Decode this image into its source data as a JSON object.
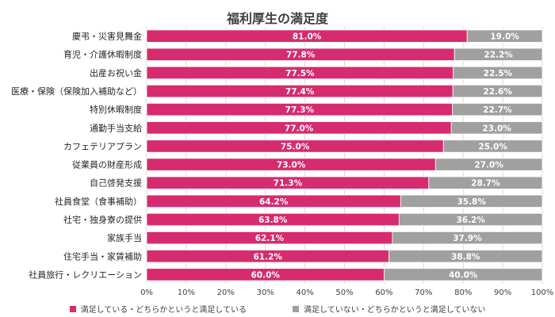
{
  "chart_data": {
    "type": "bar",
    "orientation": "horizontal",
    "stacked": "percent",
    "title": "福利厚生の満足度",
    "categories": [
      "慶弔・災害見舞金",
      "育児・介護休暇制度",
      "出産お祝い金",
      "医療・保険（保険加入補助など）",
      "特別休暇制度",
      "通勤手当支給",
      "カフェテリアプラン",
      "従業員の財産形成",
      "自己啓発支援",
      "社員食堂（食事補助）",
      "社宅・独身寮の提供",
      "家族手当",
      "住宅手当・家賃補助",
      "社員旅行・レクリエーション"
    ],
    "series": [
      {
        "name": "満足している・どちらかというと満足している",
        "color": "#d62b6f",
        "values": [
          81.0,
          77.8,
          77.5,
          77.4,
          77.3,
          77.0,
          75.0,
          73.0,
          71.3,
          64.2,
          63.8,
          62.1,
          61.2,
          60.0
        ],
        "labels": [
          "81.0%",
          "77.8%",
          "77.5%",
          "77.4%",
          "77.3%",
          "77.0%",
          "75.0%",
          "73.0%",
          "71.3%",
          "64.2%",
          "63.8%",
          "62.1%",
          "61.2%",
          "60.0%"
        ]
      },
      {
        "name": "満足していない・どちらかというと満足していない",
        "color": "#a0a0a0",
        "values": [
          19.0,
          22.2,
          22.5,
          22.6,
          22.7,
          23.0,
          25.0,
          27.0,
          28.7,
          35.8,
          36.2,
          37.9,
          38.8,
          40.0
        ],
        "labels": [
          "19.0%",
          "22.2%",
          "22.5%",
          "22.6%",
          "22.7%",
          "23.0%",
          "25.0%",
          "27.0%",
          "28.7%",
          "35.8%",
          "36.2%",
          "37.9%",
          "38.8%",
          "40.0%"
        ]
      }
    ],
    "xlim": [
      0,
      100
    ],
    "xticks": [
      "0%",
      "10%",
      "20%",
      "30%",
      "40%",
      "50%",
      "60%",
      "70%",
      "80%",
      "90%",
      "100%"
    ],
    "grid": true,
    "legend_position": "bottom"
  }
}
